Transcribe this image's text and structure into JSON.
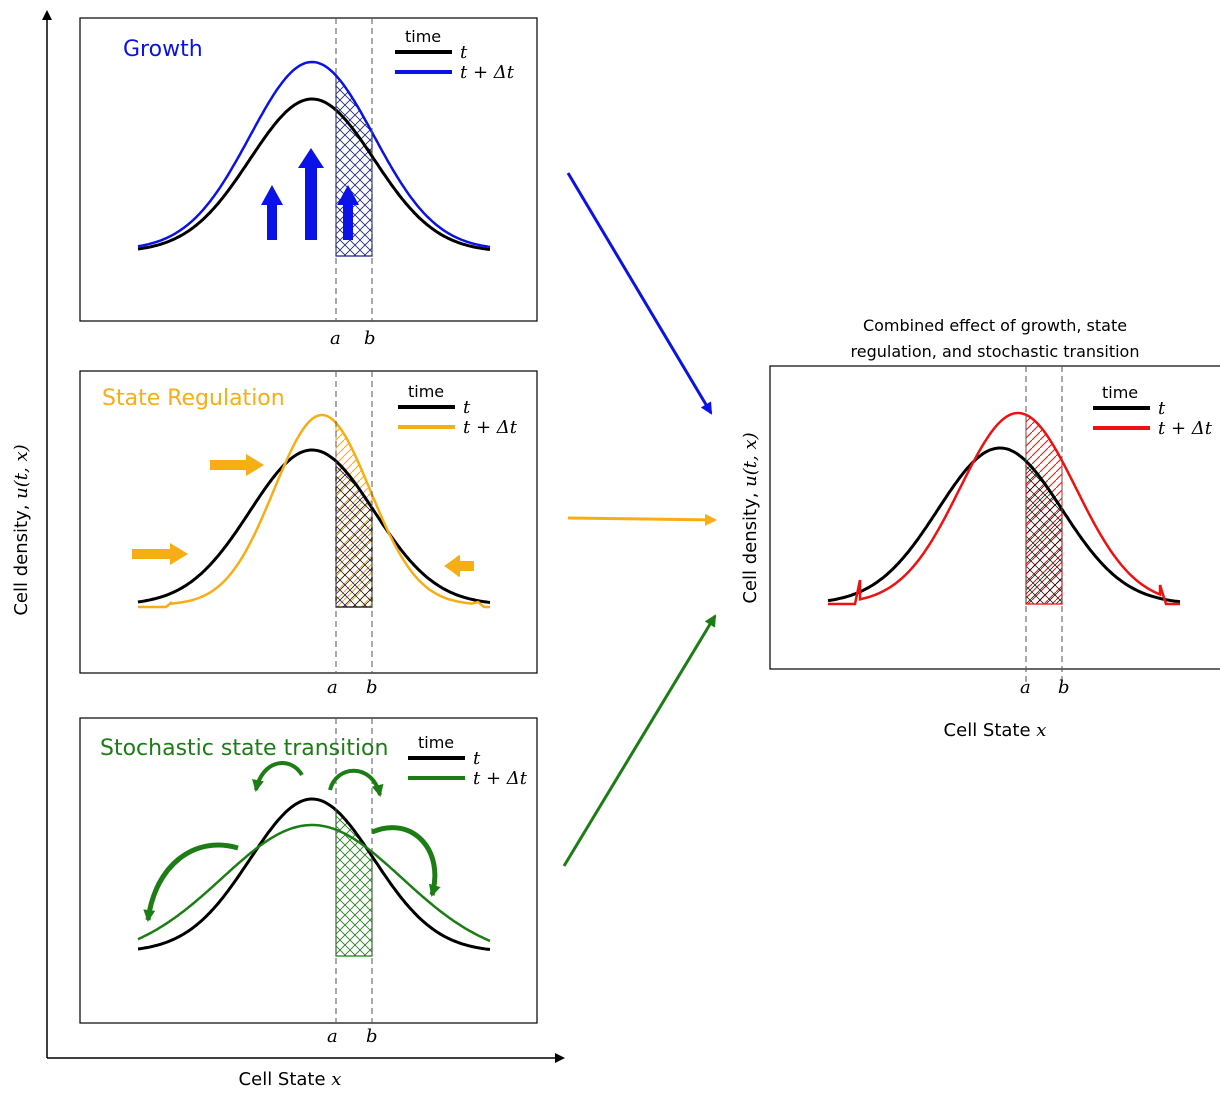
{
  "axes": {
    "y_label_prefix": "Cell density, ",
    "y_label_math": "u(t, x)",
    "x_label_prefix": "Cell State ",
    "x_label_math": "x"
  },
  "legend": {
    "heading": "time",
    "t": "t",
    "t_dt": "t + Δt"
  },
  "markers": {
    "a": "a",
    "b": "b"
  },
  "panels": {
    "growth": {
      "title": "Growth",
      "color": "#0a12e8"
    },
    "regulation": {
      "title": "State Regulation",
      "color": "#f7ad14"
    },
    "stochastic": {
      "title": "Stochastic state transition",
      "color": "#1b7d14"
    },
    "combined": {
      "title_line1": "Combined effect of growth, state",
      "title_line2": "regulation, and stochastic transition",
      "color": "#ee1111"
    }
  },
  "colors": {
    "baseline": "#000000"
  }
}
